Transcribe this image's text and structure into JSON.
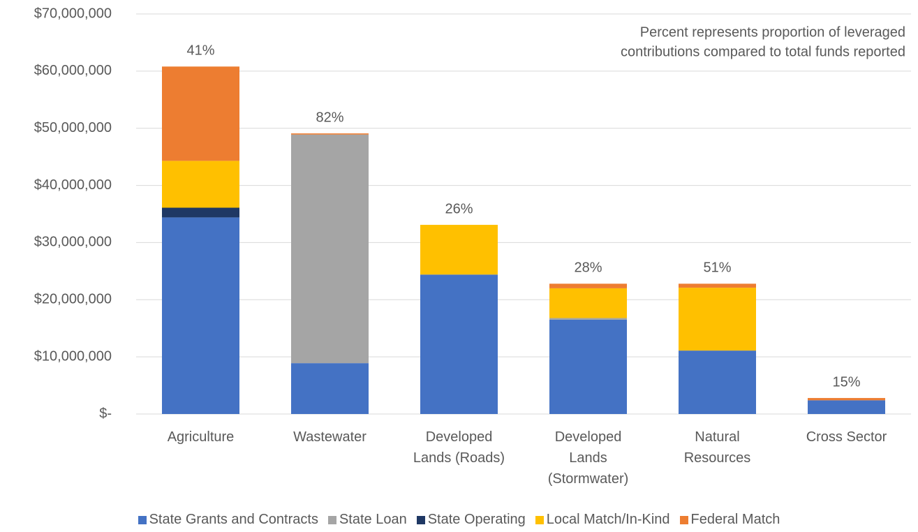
{
  "chart_data": {
    "type": "stacked_bar",
    "categories": [
      "Agriculture",
      "Wastewater",
      "Developed Lands (Roads)",
      "Developed Lands (Stormwater)",
      "Natural Resources",
      "Cross Sector"
    ],
    "series": [
      {
        "name": "State Grants and Contracts",
        "color": "#4472c4",
        "values": [
          34400000,
          8900000,
          24400000,
          16500000,
          11100000,
          2400000
        ]
      },
      {
        "name": "State Loan",
        "color": "#a5a5a5",
        "values": [
          0,
          40000000,
          0,
          300000,
          0,
          0
        ]
      },
      {
        "name": "State Operating",
        "color": "#1f3864",
        "values": [
          1700000,
          0,
          0,
          0,
          0,
          0
        ]
      },
      {
        "name": "Local Match/In-Kind",
        "color": "#ffc000",
        "values": [
          8200000,
          0,
          8700000,
          5200000,
          11000000,
          0
        ]
      },
      {
        "name": "Federal Match",
        "color": "#ed7d31",
        "values": [
          16500000,
          200000,
          0,
          800000,
          700000,
          400000
        ]
      }
    ],
    "percent_labels": [
      "41%",
      "82%",
      "26%",
      "28%",
      "51%",
      "15%"
    ],
    "annotation": [
      "Percent represents proportion of leveraged",
      "contributions compared to total funds reported"
    ],
    "ylim": [
      0,
      70000000
    ],
    "yticks": [
      {
        "value": 0,
        "label": "$-"
      },
      {
        "value": 10000000,
        "label": "$10,000,000"
      },
      {
        "value": 20000000,
        "label": "$20,000,000"
      },
      {
        "value": 30000000,
        "label": "$30,000,000"
      },
      {
        "value": 40000000,
        "label": "$40,000,000"
      },
      {
        "value": 50000000,
        "label": "$50,000,000"
      },
      {
        "value": 60000000,
        "label": "$60,000,000"
      },
      {
        "value": 70000000,
        "label": "$70,000,000"
      }
    ],
    "grid": true,
    "legend": "bottom"
  }
}
